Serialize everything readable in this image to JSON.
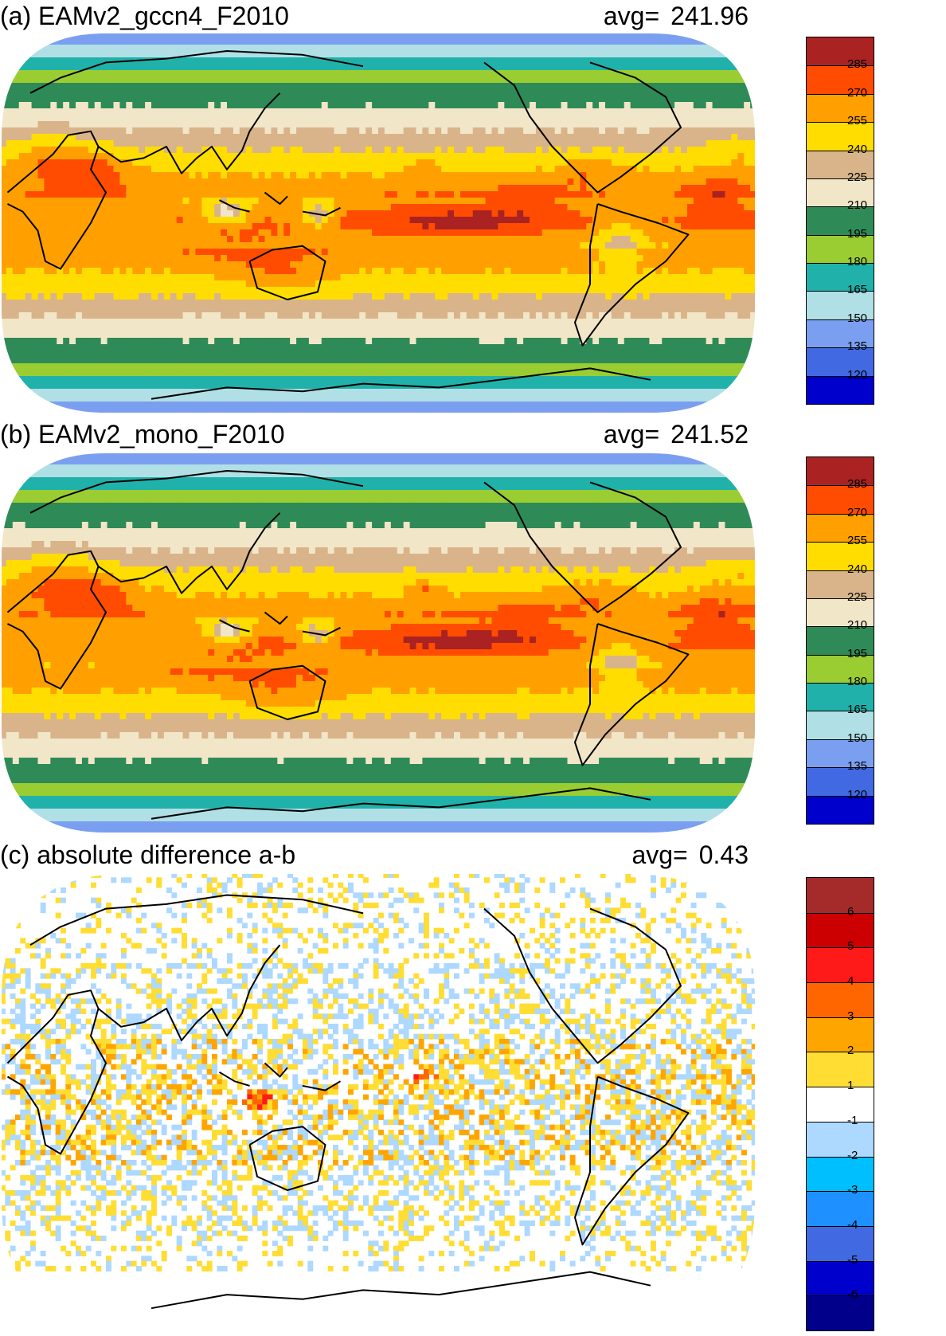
{
  "panels": [
    {
      "id": "a",
      "title": "(a) EAMv2_gccn4_F2010",
      "avg_label": "avg=",
      "avg_value": "241.96",
      "kind": "field",
      "colorbar": {
        "colors": [
          "#aa2222",
          "#ff4c00",
          "#ffa000",
          "#ffdd00",
          "#d9b48a",
          "#f2e6c8",
          "#2e8b57",
          "#9acd32",
          "#20b2aa",
          "#b0e0e6",
          "#7b9ff0",
          "#4169e1",
          "#0000cd"
        ],
        "ticks": [
          "285",
          "270",
          "255",
          "240",
          "225",
          "210",
          "195",
          "180",
          "165",
          "150",
          "135",
          "120"
        ]
      }
    },
    {
      "id": "b",
      "title": "(b) EAMv2_mono_F2010",
      "avg_label": "avg=",
      "avg_value": "241.52",
      "kind": "field",
      "colorbar": {
        "colors": [
          "#aa2222",
          "#ff4c00",
          "#ffa000",
          "#ffdd00",
          "#d9b48a",
          "#f2e6c8",
          "#2e8b57",
          "#9acd32",
          "#20b2aa",
          "#b0e0e6",
          "#7b9ff0",
          "#4169e1",
          "#0000cd"
        ],
        "ticks": [
          "285",
          "270",
          "255",
          "240",
          "225",
          "210",
          "195",
          "180",
          "165",
          "150",
          "135",
          "120"
        ]
      }
    },
    {
      "id": "c",
      "title": "(c) absolute difference a-b",
      "avg_label": "avg=",
      "avg_value": "0.43",
      "kind": "diff",
      "colorbar": {
        "colors": [
          "#a52a2a",
          "#cc0000",
          "#ff1a1a",
          "#ff6600",
          "#ffa500",
          "#ffdd33",
          "#ffffff",
          "#add8ff",
          "#00bfff",
          "#1e90ff",
          "#4169e1",
          "#0000cd",
          "#00008b"
        ],
        "ticks": [
          "6",
          "5",
          "4",
          "3",
          "2",
          "1",
          "-1",
          "-2",
          "-3",
          "-4",
          "-5",
          "-6"
        ]
      }
    }
  ]
}
